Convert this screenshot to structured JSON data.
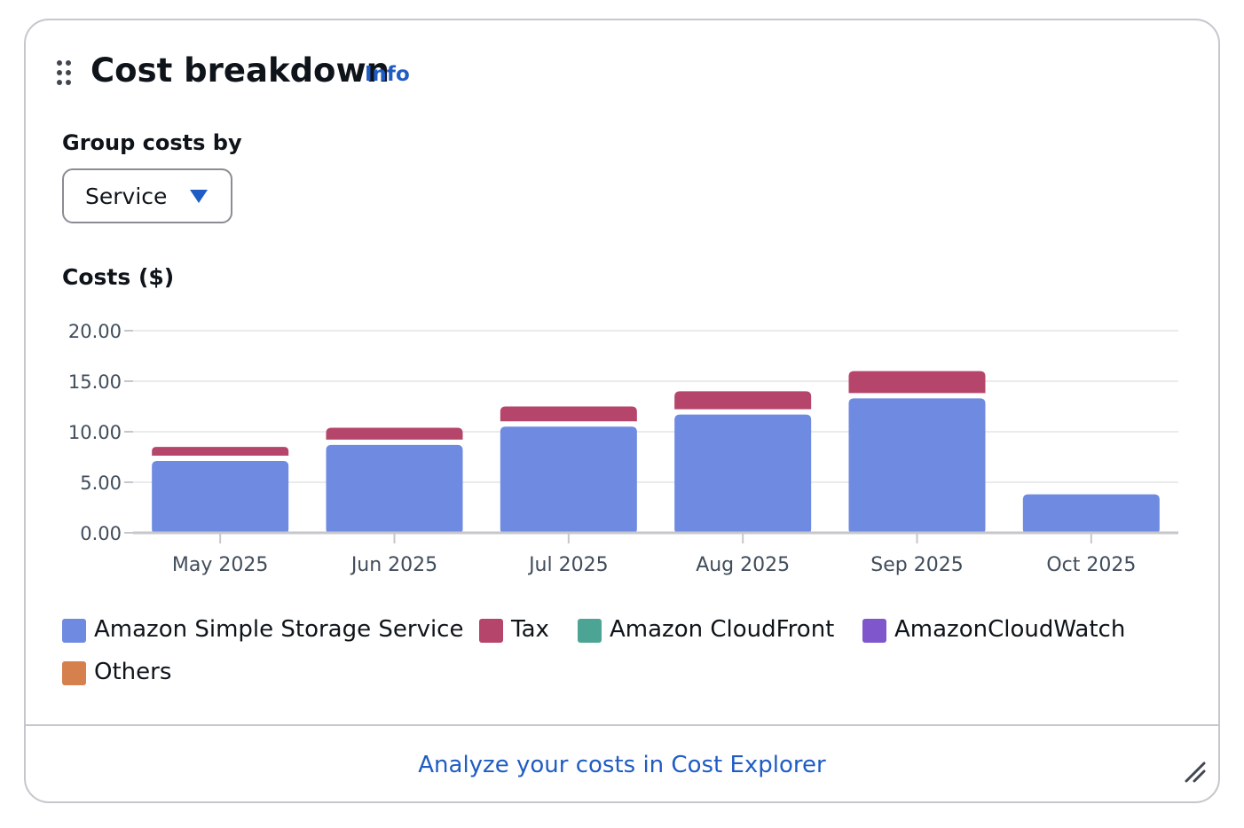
{
  "widget": {
    "title": "Cost breakdown",
    "info_link": "Info",
    "group_by_label": "Group costs by",
    "group_by_value": "Service",
    "footer_link": "Analyze your costs in Cost Explorer"
  },
  "colors": {
    "s3": "#6f8ae1",
    "tax": "#b5456a",
    "cloudfront": "#4ca594",
    "cloudwatch": "#7f56cc",
    "others": "#d5804d",
    "link": "#1f5cc4"
  },
  "chart_data": {
    "type": "bar",
    "stacked": true,
    "title": "Costs ($)",
    "xlabel": "",
    "ylabel": "",
    "categories": [
      "May 2025",
      "Jun 2025",
      "Jul 2025",
      "Aug 2025",
      "Sep 2025",
      "Oct 2025"
    ],
    "ylim": [
      0,
      20
    ],
    "yticks": [
      "0.00",
      "5.00",
      "10.00",
      "15.00",
      "20.00"
    ],
    "grid": true,
    "legend_position": "bottom",
    "series": [
      {
        "name": "Amazon Simple Storage Service",
        "color": "#6f8ae1",
        "values": [
          7.1,
          8.7,
          10.5,
          11.7,
          13.3,
          3.8
        ]
      },
      {
        "name": "Tax",
        "color": "#b5456a",
        "values": [
          1.4,
          1.7,
          2.0,
          2.3,
          2.7,
          0.5
        ]
      },
      {
        "name": "Amazon CloudFront",
        "color": "#4ca594",
        "values": [
          0,
          0,
          0,
          0,
          0,
          0
        ]
      },
      {
        "name": "AmazonCloudWatch",
        "color": "#7f56cc",
        "values": [
          0,
          0,
          0,
          0,
          0,
          0
        ]
      },
      {
        "name": "Others",
        "color": "#d5804d",
        "values": [
          0,
          0,
          0,
          0,
          0,
          0
        ]
      }
    ]
  }
}
